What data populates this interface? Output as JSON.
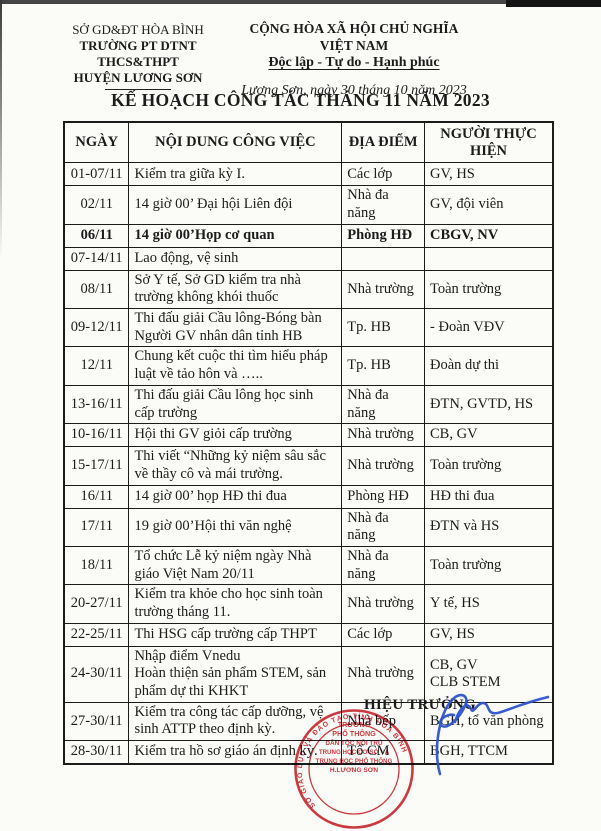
{
  "document": {
    "issuer": {
      "line1": "SỞ GD&ĐT HÒA BÌNH",
      "line2": "TRƯỜNG PT DTNT THCS&THPT",
      "line3": "HUYỆN LƯƠNG SƠN"
    },
    "national": {
      "line1": "CỘNG HÒA XÃ HỘI CHỦ NGHĨA VIỆT NAM",
      "line2": "Độc lập - Tự do - Hạnh phúc",
      "dateline": "Lương Sơn, ngày 30 tháng 10 năm 2023"
    },
    "title": "KẾ HOẠCH CÔNG TÁC THÁNG 11 NĂM 2023"
  },
  "table": {
    "headers": [
      "NGÀY",
      "NỘI DUNG CÔNG VIỆC",
      "ĐỊA ĐIỂM",
      "NGƯỜI THỰC HIỆN"
    ],
    "rows": [
      {
        "date": "01-07/11",
        "content": "Kiểm tra giữa kỳ I.",
        "place": "Các lớp",
        "who": "GV, HS",
        "bold": false
      },
      {
        "date": "02/11",
        "content": "14 giờ 00’ Đại hội Liên đội",
        "place": "Nhà đa năng",
        "who": "GV, đội viên",
        "bold": false
      },
      {
        "date": "06/11",
        "content": "14 giờ 00’Họp cơ quan",
        "place": "Phòng HĐ",
        "who": "CBGV, NV",
        "bold": true
      },
      {
        "date": "07-14/11",
        "content": "Lao động, vệ sinh",
        "place": "",
        "who": "",
        "bold": false
      },
      {
        "date": "08/11",
        "content": "Sở Y tế, Sở GD kiểm tra nhà trường không khói thuốc",
        "place": "Nhà trường",
        "who": "Toàn trường",
        "bold": false
      },
      {
        "date": "09-12/11",
        "content": "Thi đấu giải Cầu lông-Bóng bàn Người GV nhân dân tỉnh HB",
        "place": "Tp. HB",
        "who": "- Đoàn VĐV",
        "bold": false
      },
      {
        "date": "12/11",
        "content": "Chung kết cuộc thi tìm hiểu pháp luật về tảo hôn và …..",
        "place": "Tp. HB",
        "who": "Đoàn dự thi",
        "bold": false
      },
      {
        "date": "13-16/11",
        "content": "Thi đấu giải Cầu lông học sinh cấp trường",
        "place": "Nhà đa năng",
        "who": "ĐTN, GVTD, HS",
        "bold": false
      },
      {
        "date": "10-16/11",
        "content": "Hội thi GV giỏi cấp trường",
        "place": "Nhà trường",
        "who": "CB, GV",
        "bold": false
      },
      {
        "date": "15-17/11",
        "content": "Thi viết “Những kỷ niệm sâu sắc về thầy cô và mái trường.",
        "place": "Nhà trường",
        "who": "Toàn trường",
        "bold": false
      },
      {
        "date": "16/11",
        "content": "14 giờ 00’ họp HĐ thi đua",
        "place": "Phòng HĐ",
        "who": "HĐ thi đua",
        "bold": false
      },
      {
        "date": "17/11",
        "content": "19 giờ 00’Hội thi văn nghệ",
        "place": "Nhà đa năng",
        "who": "ĐTN và HS",
        "bold": false
      },
      {
        "date": "18/11",
        "content": "Tổ chức Lễ kỷ niệm ngày Nhà giáo Việt Nam 20/11",
        "place": "Nhà đa năng",
        "who": "Toàn trường",
        "bold": false
      },
      {
        "date": "20-27/11",
        "content": "Kiểm tra khỏe cho học sinh toàn trường tháng 11.",
        "place": "Nhà trường",
        "who": "Y tế, HS",
        "bold": false
      },
      {
        "date": "22-25/11",
        "content": "Thi HSG cấp trường cấp THPT",
        "place": "Các lớp",
        "who": "GV, HS",
        "bold": false
      },
      {
        "date": "24-30/11",
        "content": "Nhập điểm Vnedu\nHoàn thiện sản phẩm STEM, sản phẩm dự thi KHKT",
        "place": "Nhà trường",
        "who": "CB, GV\nCLB STEM",
        "bold": false
      },
      {
        "date": "27-30/11",
        "content": "Kiểm tra công tác cấp dưỡng, vệ sinh ATTP theo định kỳ.",
        "place": "Nhà bếp",
        "who": "BGH, tổ văn phòng",
        "bold": false
      },
      {
        "date": "28-30/11",
        "content": "Kiểm tra hồ sơ giáo án định kỳ.",
        "place": "Tổ CM",
        "who": "BGH, TTCM",
        "bold": false
      }
    ]
  },
  "signature_block": {
    "signer_title": "HIỆU TRƯỞNG",
    "stamp": {
      "rim_text": "SỞ GIÁO DỤC VÀ ĐÀO TẠO   TỈNH HÒA BÌNH",
      "center_lines": [
        "TRƯỜNG",
        "PHỔ THÔNG",
        "DÂN TỘC NỘI TRÚ",
        "TRUNG HỌC CƠ SỞ VÀ",
        "TRUNG HỌC PHỔ THÔNG",
        "H.LƯƠNG SƠN"
      ]
    }
  },
  "colors": {
    "stamp_red": "#cb2a2e",
    "signature_blue": "#2f55cf",
    "ink": "#1c1c1c",
    "paper": "#fbfbf8"
  }
}
